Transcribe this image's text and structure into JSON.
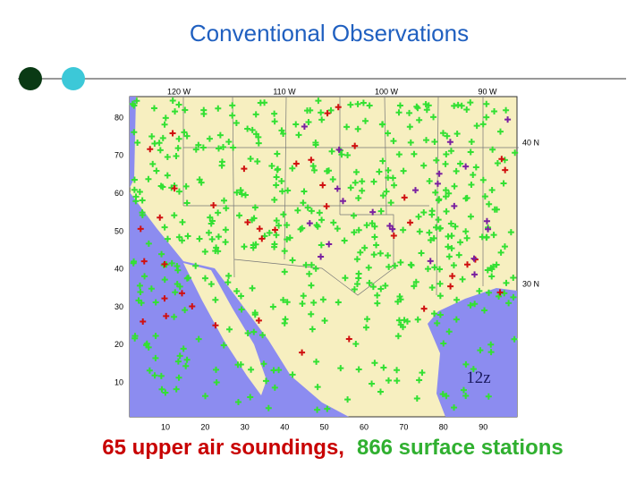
{
  "header": {
    "title": "Conventional Observations"
  },
  "map": {
    "top_labels": [
      "120 W",
      "110 W",
      "100 W",
      "90 W"
    ],
    "right_labels": [
      "40 N",
      "30 N"
    ],
    "left_labels": [
      "80",
      "70",
      "60",
      "50",
      "40",
      "30",
      "20",
      "10"
    ],
    "bottom_labels": [
      "10",
      "20",
      "30",
      "40",
      "50",
      "60",
      "70",
      "80",
      "90"
    ],
    "time_label": "12z"
  },
  "caption": {
    "upper_air": "65 upper air soundings,",
    "surface": "866 surface stations"
  }
}
